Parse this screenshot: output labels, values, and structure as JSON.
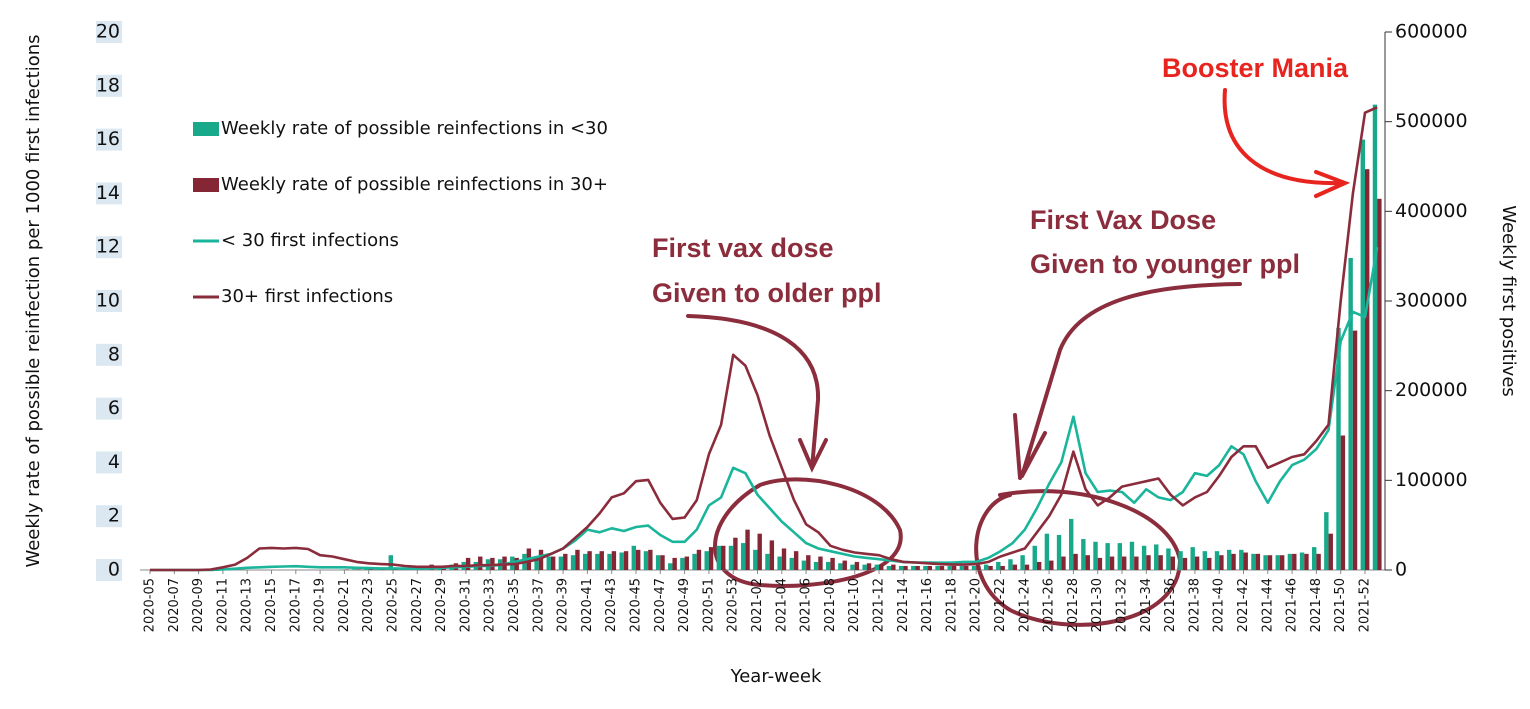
{
  "chart_data": {
    "type": "bar",
    "ylabel": "Weekly rate of possible reinfection per 1000 first infections",
    "y2label": "Weekly first positives",
    "xlabel": "Year-week",
    "annotations": [
      "First vax dose",
      "Given to older ppl",
      "First Vax Dose",
      "Given to younger ppl",
      "Booster Mania"
    ],
    "categories": [
      "2020-05",
      null,
      "2020-07",
      null,
      "2020-09",
      null,
      "2020-11",
      null,
      "2020-13",
      null,
      "2020-15",
      null,
      "2020-17",
      null,
      "2020-19",
      null,
      "2020-21",
      null,
      "2020-23",
      null,
      "2020-25",
      null,
      "2020-27",
      null,
      "2020-29",
      null,
      "2020-31",
      null,
      "2020-33",
      null,
      "2020-35",
      null,
      "2020-37",
      null,
      "2020-39",
      null,
      "2020-41",
      null,
      "2020-43",
      null,
      "2020-45",
      null,
      "2020-47",
      null,
      "2020-49",
      null,
      "2020-51",
      null,
      "2020-53",
      null,
      "2021-02",
      null,
      "2021-04",
      null,
      "2021-06",
      null,
      "2021-08",
      null,
      "2021-10",
      null,
      "2021-12",
      null,
      "2021-14",
      null,
      "2021-16",
      null,
      "2021-18",
      null,
      "2021-20",
      null,
      "2021-22",
      null,
      "2021-24",
      null,
      "2021-26",
      null,
      "2021-28",
      null,
      "2021-30",
      null,
      "2021-32",
      null,
      "2021-34",
      null,
      "2021-36",
      null,
      "2021-38",
      null,
      "2021-40",
      null,
      "2021-42",
      null,
      "2021-44",
      null,
      "2021-46",
      null,
      "2021-48",
      null,
      "2021-50",
      null,
      "2021-52",
      null
    ],
    "series": [
      {
        "name": "Weekly rate of possible reinfections in <30",
        "type": "bar",
        "color": "#17a98a",
        "values": [
          0,
          0,
          0,
          0,
          0,
          0,
          0,
          0,
          0,
          0,
          0,
          0,
          0,
          0,
          0,
          0,
          0.02,
          0.03,
          0.05,
          0.05,
          0.55,
          0.1,
          0.12,
          0.15,
          0.15,
          0.2,
          0.3,
          0.3,
          0.4,
          0.4,
          0.5,
          0.6,
          0.5,
          0.5,
          0.5,
          0.55,
          0.6,
          0.6,
          0.6,
          0.65,
          0.9,
          0.7,
          0.55,
          0.25,
          0.45,
          0.6,
          0.7,
          0.9,
          0.9,
          1.0,
          0.75,
          0.6,
          0.5,
          0.45,
          0.35,
          0.3,
          0.3,
          0.25,
          0.2,
          0.2,
          0.2,
          0.15,
          0.15,
          0.15,
          0.15,
          0.15,
          0.15,
          0.15,
          0.15,
          0.2,
          0.3,
          0.4,
          0.55,
          0.9,
          1.35,
          1.3,
          1.9,
          1.15,
          1.05,
          1.0,
          1.0,
          1.05,
          0.9,
          0.95,
          0.8,
          0.7,
          0.85,
          0.7,
          0.7,
          0.75,
          0.75,
          0.6,
          0.55,
          0.55,
          0.6,
          0.65,
          0.85,
          2.15,
          9.0,
          11.6,
          16.0,
          17.3
        ]
      },
      {
        "name": "Weekly rate of possible reinfections in 30+",
        "type": "bar",
        "color": "#852634",
        "values": [
          0,
          0,
          0,
          0,
          0,
          0,
          0,
          0,
          0,
          0,
          0,
          0,
          0,
          0,
          0,
          0,
          0.02,
          0.02,
          0.03,
          0.03,
          0.05,
          0.08,
          0.15,
          0.2,
          0.15,
          0.25,
          0.45,
          0.5,
          0.45,
          0.5,
          0.45,
          0.8,
          0.75,
          0.5,
          0.6,
          0.75,
          0.7,
          0.7,
          0.7,
          0.7,
          0.75,
          0.75,
          0.55,
          0.45,
          0.5,
          0.75,
          0.85,
          0.9,
          1.2,
          1.5,
          1.35,
          1.1,
          0.8,
          0.7,
          0.55,
          0.5,
          0.45,
          0.35,
          0.3,
          0.25,
          0.2,
          0.2,
          0.15,
          0.15,
          0.15,
          0.15,
          0.15,
          0.15,
          0.15,
          0.15,
          0.15,
          0.2,
          0.2,
          0.3,
          0.35,
          0.5,
          0.6,
          0.55,
          0.45,
          0.5,
          0.5,
          0.5,
          0.55,
          0.55,
          0.5,
          0.45,
          0.5,
          0.45,
          0.55,
          0.6,
          0.65,
          0.6,
          0.55,
          0.55,
          0.6,
          0.6,
          0.6,
          1.35,
          5.0,
          8.9,
          14.9,
          13.8
        ]
      },
      {
        "name": "< 30 first infections",
        "type": "line",
        "axis": "y2",
        "color": "#1ab59b",
        "values": [
          0,
          0,
          0,
          0,
          0,
          0,
          600,
          1500,
          2400,
          3000,
          3600,
          3900,
          4200,
          3600,
          3000,
          3000,
          3000,
          2400,
          2100,
          1800,
          1800,
          1500,
          1500,
          1800,
          2400,
          3000,
          3600,
          4500,
          4500,
          6000,
          9000,
          12000,
          15000,
          18000,
          24000,
          33000,
          45000,
          42000,
          46500,
          43500,
          48000,
          49500,
          39000,
          31500,
          31500,
          45000,
          72000,
          81000,
          114000,
          108000,
          84000,
          69000,
          54000,
          42000,
          30000,
          24000,
          21000,
          18000,
          15000,
          13500,
          12000,
          10500,
          9000,
          8400,
          8400,
          8100,
          8100,
          9000,
          9000,
          13500,
          21000,
          30000,
          45000,
          69000,
          96000,
          120000,
          171000,
          108000,
          87000,
          88500,
          87000,
          75000,
          90000,
          81000,
          78000,
          87000,
          108000,
          105000,
          117000,
          138000,
          129000,
          99000,
          75000,
          99000,
          117000,
          123000,
          135000,
          156000,
          255000,
          288000,
          282000,
          360000
        ]
      },
      {
        "name": "30+ first infections",
        "type": "line",
        "axis": "y2",
        "color": "#8a2c3b",
        "values": [
          0,
          0,
          0,
          0,
          0,
          600,
          3000,
          6000,
          13500,
          24000,
          24600,
          24000,
          24600,
          23400,
          16500,
          15000,
          12000,
          9000,
          7500,
          6600,
          6000,
          4500,
          3600,
          3600,
          3600,
          4500,
          4500,
          5400,
          5400,
          6000,
          6600,
          9000,
          12000,
          18000,
          24000,
          36000,
          48000,
          63000,
          81000,
          85500,
          99000,
          100500,
          75000,
          57000,
          58500,
          78000,
          129000,
          162000,
          240000,
          228000,
          195000,
          150000,
          114000,
          78000,
          51000,
          42000,
          27000,
          22500,
          19500,
          18000,
          16500,
          12000,
          9000,
          8400,
          7500,
          6600,
          6000,
          6000,
          6600,
          9000,
          15000,
          19500,
          24000,
          42000,
          60000,
          84000,
          132000,
          90000,
          72000,
          81000,
          93000,
          96000,
          99000,
          102000,
          84000,
          72000,
          81000,
          87000,
          105000,
          126000,
          138000,
          138000,
          114000,
          120000,
          126000,
          129000,
          144000,
          162000,
          300000,
          420000,
          510000,
          516000
        ]
      }
    ],
    "ylim": [
      0,
      20
    ],
    "yticks": [
      0,
      2,
      4,
      6,
      8,
      10,
      12,
      14,
      16,
      18,
      20
    ],
    "y2lim": [
      0,
      600000
    ],
    "y2ticks": [
      0,
      100000,
      200000,
      300000,
      400000,
      500000,
      600000
    ]
  }
}
